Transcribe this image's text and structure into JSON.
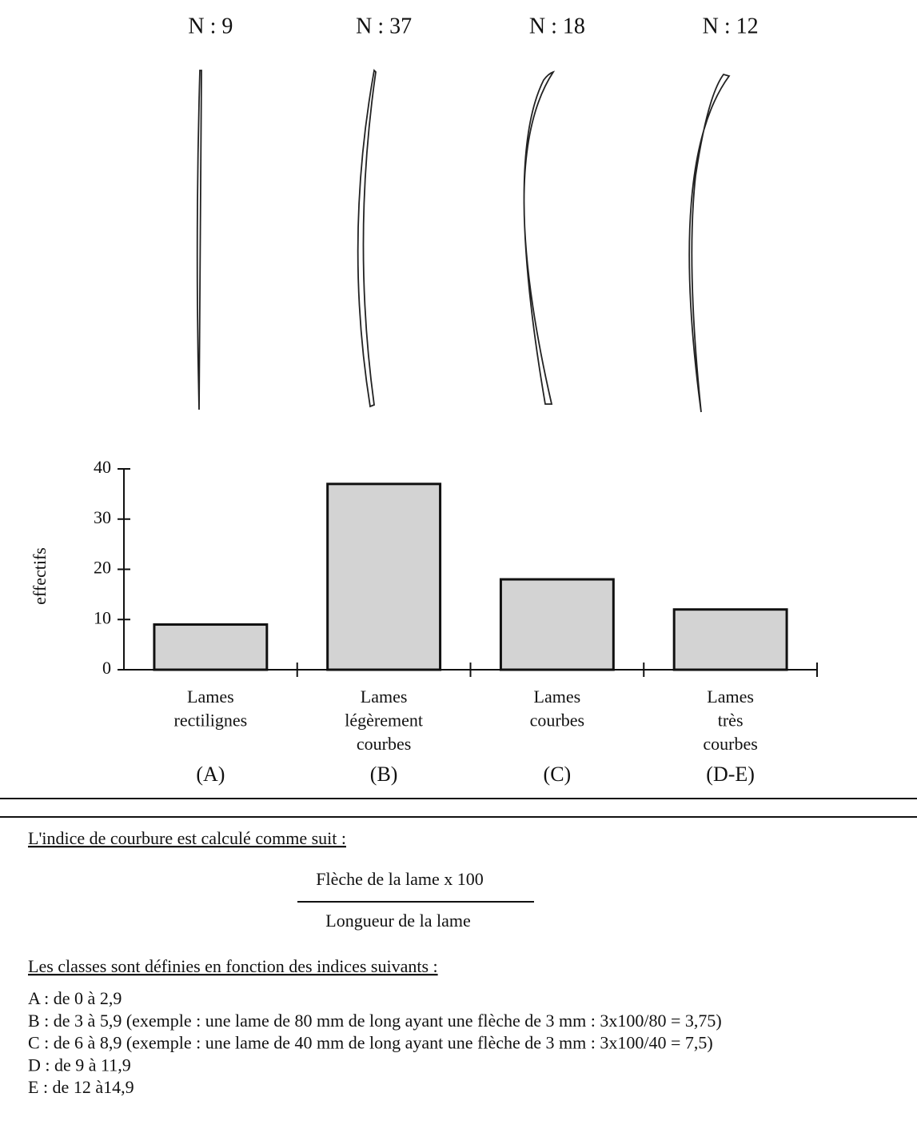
{
  "chart_data": {
    "type": "bar",
    "categories": [
      [
        "Lames",
        "rectilignes"
      ],
      [
        "Lames",
        "légèrement",
        "courbes"
      ],
      [
        "Lames",
        "courbes"
      ],
      [
        "Lames",
        "très",
        "courbes"
      ]
    ],
    "class_labels": [
      "(A)",
      "(B)",
      "(C)",
      "(D-E)"
    ],
    "values": [
      9,
      37,
      18,
      12
    ],
    "value_labels": [
      "N : 9",
      "N : 37",
      "N : 18",
      "N : 12"
    ],
    "color": "#d3d3d3",
    "y_label": "effectifs",
    "ylim": [
      0,
      40
    ],
    "yticks": [
      0,
      10,
      20,
      30,
      40
    ]
  },
  "formula": {
    "intro": "L'indice de courbure est calculé comme suit :",
    "numerator": "Flèche de la lame x 100",
    "denominator": "Longueur de la lame"
  },
  "classes": {
    "intro": "Les classes sont définies en fonction des indices suivants :",
    "items": [
      "A : de 0 à 2,9",
      "B : de 3 à 5,9 (exemple : une lame de 80 mm de long ayant une flèche de 3 mm : 3x100/80 = 3,75)",
      "C : de 6 à 8,9 (exemple : une lame de 40 mm de long ayant une flèche de 3 mm : 3x100/40 = 7,5)",
      "D : de 9 à 11,9",
      "E : de 12 à14,9"
    ]
  }
}
